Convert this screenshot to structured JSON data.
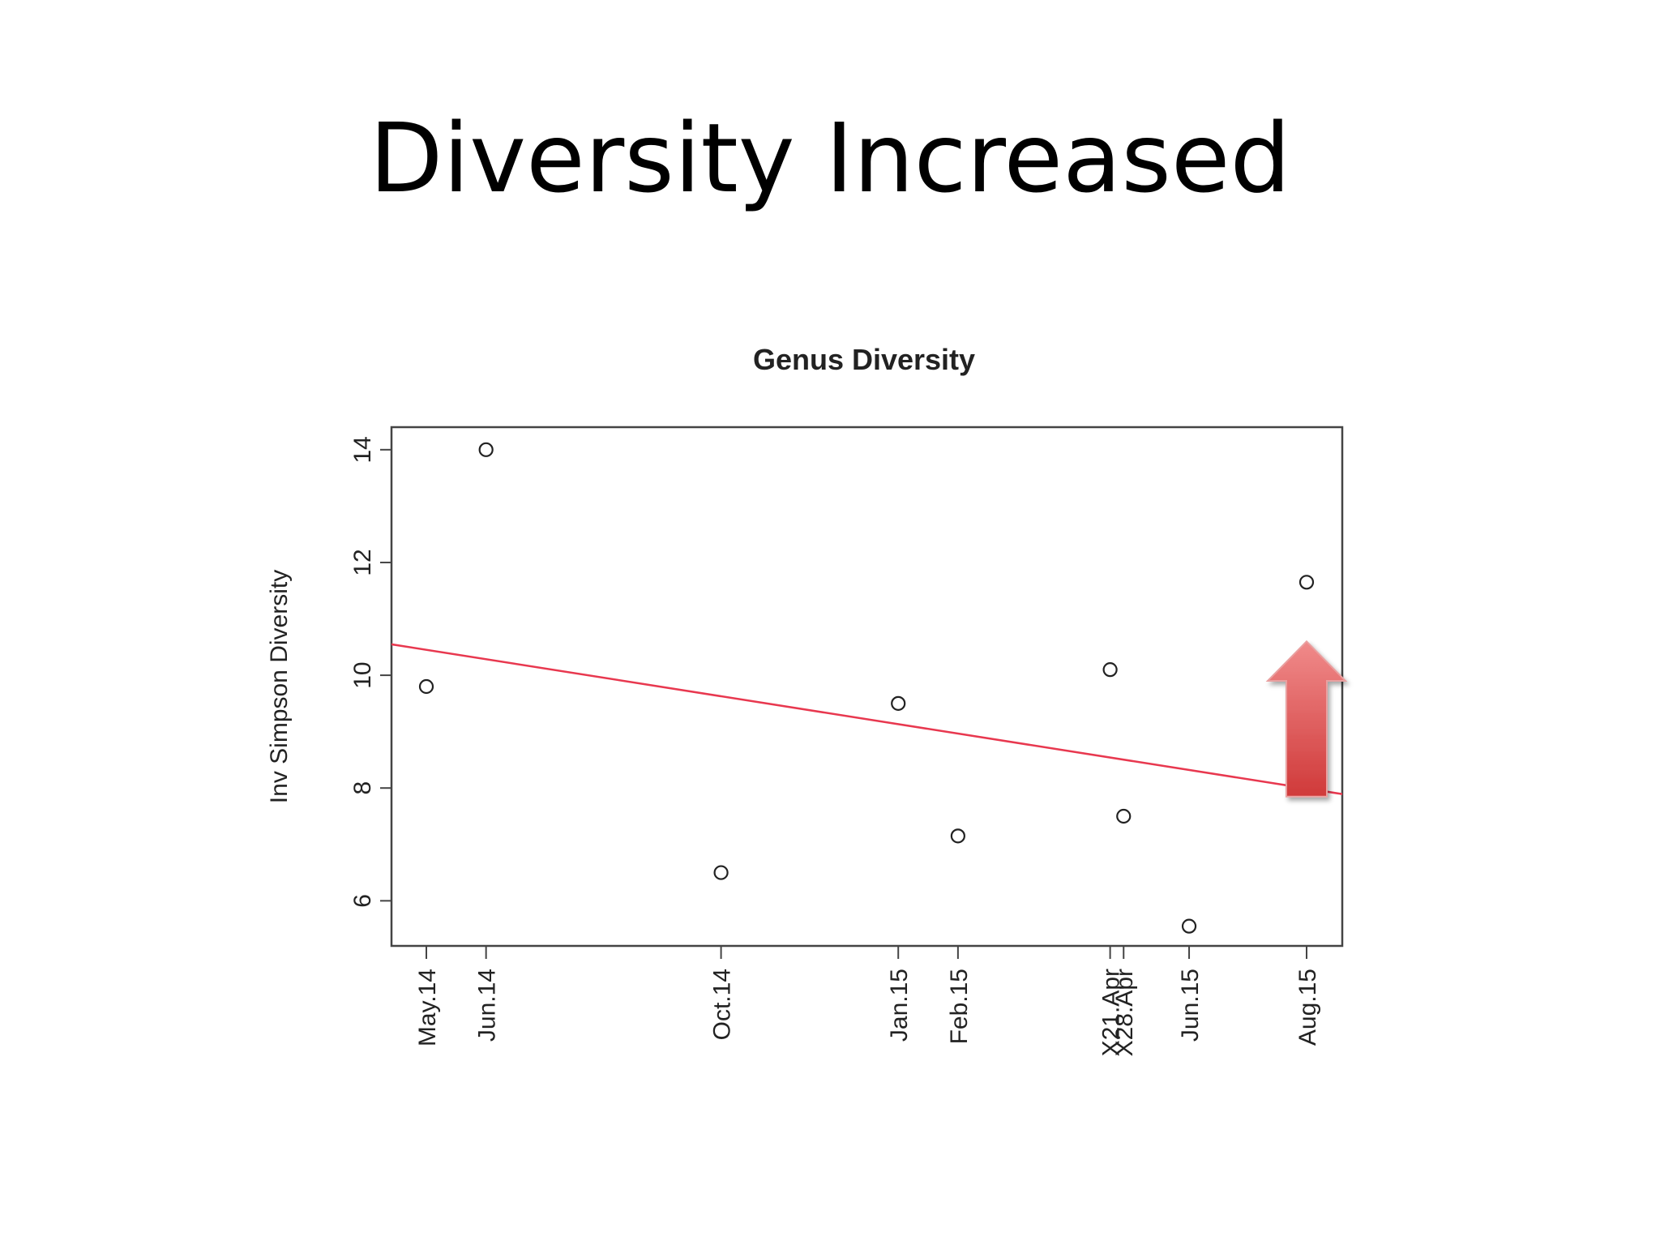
{
  "slide": {
    "title": "Diversity Increased"
  },
  "chart_data": {
    "type": "scatter",
    "title": "Genus Diversity",
    "xlabel": "",
    "ylabel": "Inv Simpson Diversity",
    "ylim": [
      5.2,
      14.4
    ],
    "yticks": [
      6,
      8,
      10,
      12,
      14
    ],
    "categories": [
      "May.14",
      "Jun.14",
      "Oct.14",
      "Jan.15",
      "Feb.15",
      "X21.Apr",
      "X28.Apr",
      "Jun.15",
      "Aug.15"
    ],
    "x": [
      "2014-05-01",
      "2014-06-01",
      "2014-10-01",
      "2015-01-01",
      "2015-02-01",
      "2015-04-21",
      "2015-04-28",
      "2015-06-01",
      "2015-08-01"
    ],
    "values": [
      9.8,
      14.0,
      6.5,
      9.5,
      7.15,
      10.1,
      7.5,
      5.55,
      11.65
    ],
    "trend_line": {
      "from": {
        "x": "2014-03-25",
        "y": 10.65
      },
      "to": {
        "x": "2015-09-15",
        "y": 7.75
      },
      "color": "#e8384f"
    },
    "point_color": "#222222",
    "grid": false,
    "annotation": {
      "shape": "up-arrow",
      "at_category": "Aug.15",
      "color_top": "#f08a8a",
      "color_bottom": "#d03a3a"
    }
  }
}
